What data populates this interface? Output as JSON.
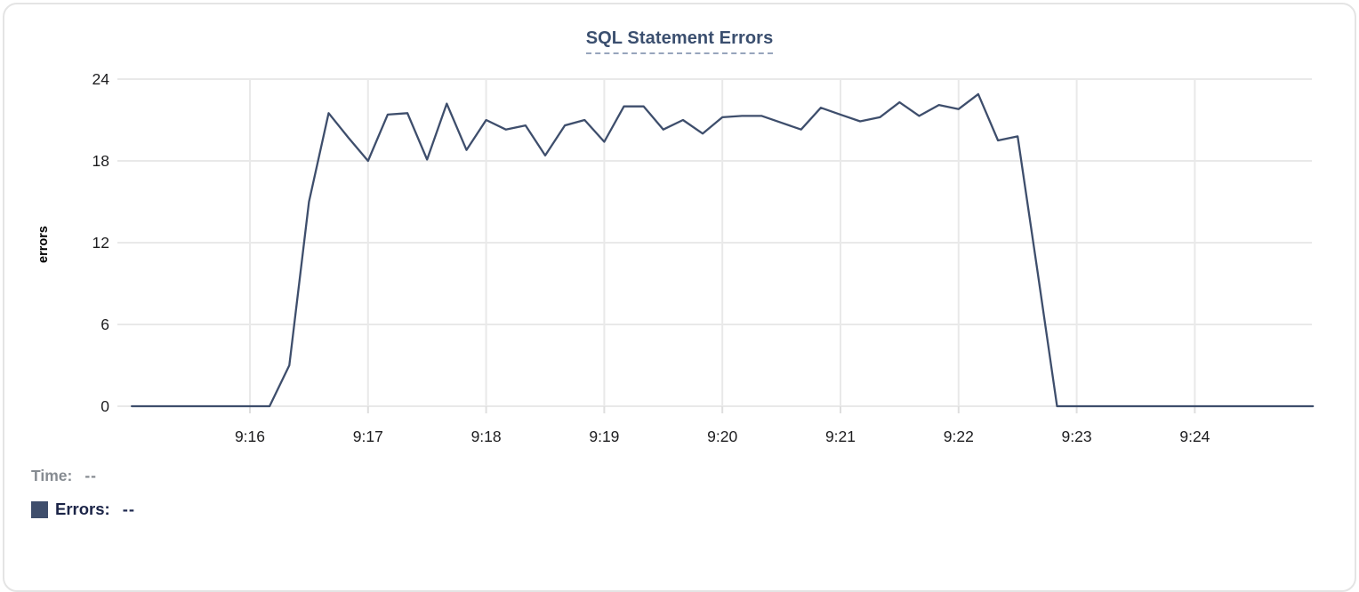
{
  "chart_data": {
    "type": "line",
    "title": "SQL Statement Errors",
    "xlabel": "",
    "ylabel": "errors",
    "ylim": [
      0,
      24
    ],
    "y_ticks": [
      0,
      6,
      12,
      18,
      24
    ],
    "x_tick_labels": [
      "9:16",
      "9:17",
      "9:18",
      "9:19",
      "9:20",
      "9:21",
      "9:22",
      "9:23",
      "9:24"
    ],
    "grid": true,
    "legend_position": "bottom-left",
    "x": [
      "9:15:00",
      "9:15:10",
      "9:15:20",
      "9:15:30",
      "9:15:40",
      "9:15:50",
      "9:16:00",
      "9:16:10",
      "9:16:20",
      "9:16:30",
      "9:16:40",
      "9:16:50",
      "9:17:00",
      "9:17:10",
      "9:17:20",
      "9:17:30",
      "9:17:40",
      "9:17:50",
      "9:18:00",
      "9:18:10",
      "9:18:20",
      "9:18:30",
      "9:18:40",
      "9:18:50",
      "9:19:00",
      "9:19:10",
      "9:19:20",
      "9:19:30",
      "9:19:40",
      "9:19:50",
      "9:20:00",
      "9:20:10",
      "9:20:20",
      "9:20:30",
      "9:20:40",
      "9:20:50",
      "9:21:00",
      "9:21:10",
      "9:21:20",
      "9:21:30",
      "9:21:40",
      "9:21:50",
      "9:22:00",
      "9:22:10",
      "9:22:20",
      "9:22:30",
      "9:22:40",
      "9:22:50",
      "9:23:00",
      "9:23:10",
      "9:23:20",
      "9:23:30",
      "9:23:40",
      "9:23:50",
      "9:24:00",
      "9:24:10",
      "9:24:20",
      "9:24:30",
      "9:24:40",
      "9:24:50",
      "9:25:00"
    ],
    "series": [
      {
        "name": "Errors",
        "color": "#3e4e6c",
        "values": [
          0,
          0,
          0,
          0,
          0,
          0,
          0,
          0,
          3,
          15,
          21.5,
          19.7,
          18,
          21.4,
          21.5,
          18.1,
          22.2,
          18.8,
          21,
          20.3,
          20.6,
          18.4,
          20.6,
          21,
          19.4,
          22,
          22,
          20.3,
          21,
          20,
          21.2,
          21.3,
          21.3,
          20.8,
          20.3,
          21.9,
          21.4,
          20.9,
          21.2,
          22.3,
          21.3,
          22.1,
          21.8,
          22.9,
          19.5,
          19.8,
          10,
          0,
          0,
          0,
          0,
          0,
          0,
          0,
          0,
          0,
          0,
          0,
          0,
          0,
          0
        ]
      }
    ]
  },
  "tooltip_readout": {
    "time_label": "Time:",
    "time_value": "--",
    "errors_label": "Errors:",
    "errors_value": "--",
    "swatch_color": "#3f4e6c"
  },
  "colors": {
    "title_text": "#3b4f6f",
    "title_underline": "#97a5bc",
    "series_line": "#3e4e6c",
    "grid_line": "#e9e9e9",
    "tick_mark": "#dedede",
    "tick_text": "#1d1d1f",
    "axis_label_text": "#000000",
    "time_text": "#868b91",
    "errors_text": "#1b2447",
    "card_border": "#e4e4e4"
  }
}
